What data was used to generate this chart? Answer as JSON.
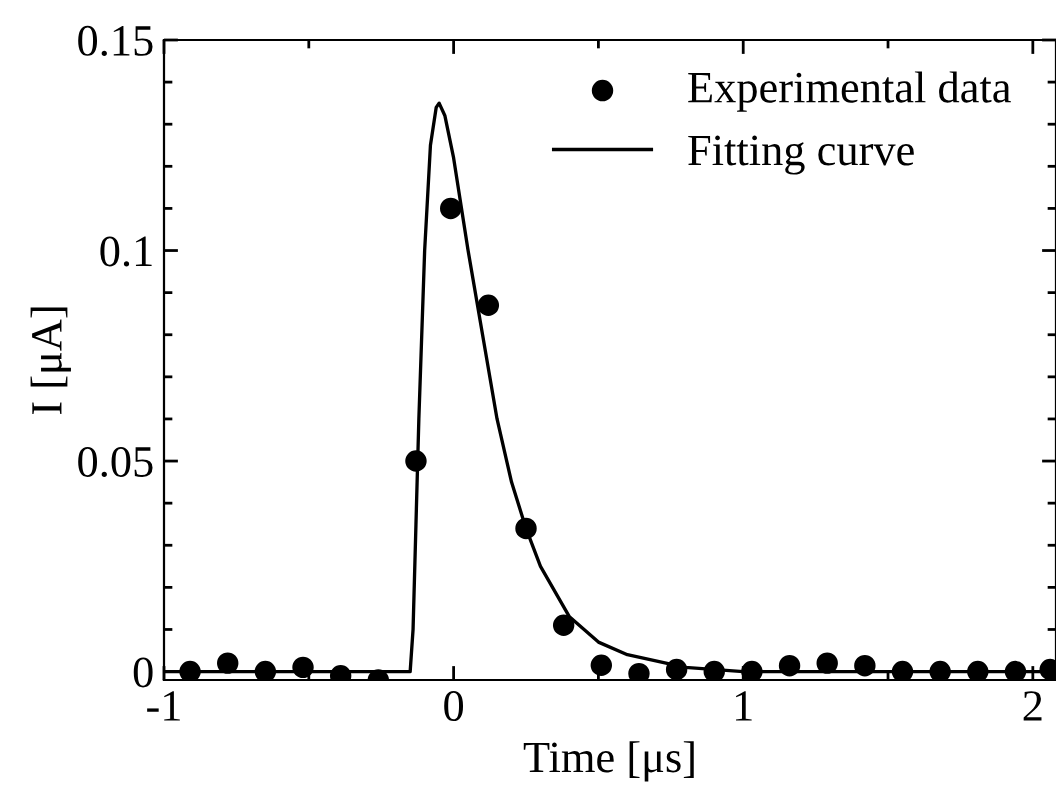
{
  "chart_data": {
    "type": "scatter",
    "xlabel": "Time [μs]",
    "ylabel": "I [μA]",
    "xlim": [
      -1,
      2.08
    ],
    "ylim": [
      -0.002,
      0.15
    ],
    "xticks": [
      -1,
      {
        "value": -0.5,
        "label": null
      },
      0,
      {
        "value": 0.5,
        "label": null
      },
      1,
      {
        "value": 1.5,
        "label": null
      },
      2
    ],
    "yticks": [
      0,
      {
        "value": 0.01,
        "label": null
      },
      {
        "value": 0.02,
        "label": null
      },
      {
        "value": 0.03,
        "label": null
      },
      {
        "value": 0.04,
        "label": null
      },
      0.05,
      {
        "value": 0.06,
        "label": null
      },
      {
        "value": 0.07,
        "label": null
      },
      {
        "value": 0.08,
        "label": null
      },
      {
        "value": 0.09,
        "label": null
      },
      0.1,
      {
        "value": 0.11,
        "label": null
      },
      {
        "value": 0.12,
        "label": null
      },
      {
        "value": 0.13,
        "label": null
      },
      {
        "value": 0.14,
        "label": null
      },
      0.15
    ],
    "grid": false,
    "legend": "top right",
    "series": [
      {
        "name": "Experimental data",
        "marker": "circle",
        "color": "#000000",
        "x": [
          -0.91,
          -0.78,
          -0.65,
          -0.52,
          -0.39,
          -0.26,
          -0.13,
          -0.01,
          0.12,
          0.25,
          0.38,
          0.51,
          0.64,
          0.77,
          0.9,
          1.03,
          1.16,
          1.29,
          1.42,
          1.55,
          1.68,
          1.81,
          1.94,
          2.06
        ],
        "values": [
          0,
          0.002,
          0,
          0.001,
          -0.001,
          -0.002,
          0.05,
          0.11,
          0.087,
          0.034,
          0.011,
          0.0015,
          -0.0005,
          0.0005,
          0,
          0,
          0.0014,
          0.002,
          0.0014,
          0,
          0,
          0,
          0,
          0.0005
        ]
      },
      {
        "name": "Fitting curve",
        "type": "line",
        "marker": "none",
        "line_style": "solid",
        "color": "#000000",
        "x": [
          -1,
          -0.15,
          -0.14,
          -0.13,
          -0.12,
          -0.1,
          -0.08,
          -0.06,
          -0.05,
          -0.03,
          0,
          0.05,
          0.1,
          0.15,
          0.2,
          0.25,
          0.3,
          0.4,
          0.5,
          0.6,
          0.8,
          1.0,
          2.08
        ],
        "values": [
          0,
          0,
          0.01,
          0.035,
          0.06,
          0.1,
          0.125,
          0.134,
          0.135,
          0.132,
          0.122,
          0.1,
          0.08,
          0.06,
          0.045,
          0.034,
          0.025,
          0.013,
          0.007,
          0.004,
          0.001,
          0,
          0
        ]
      }
    ]
  }
}
